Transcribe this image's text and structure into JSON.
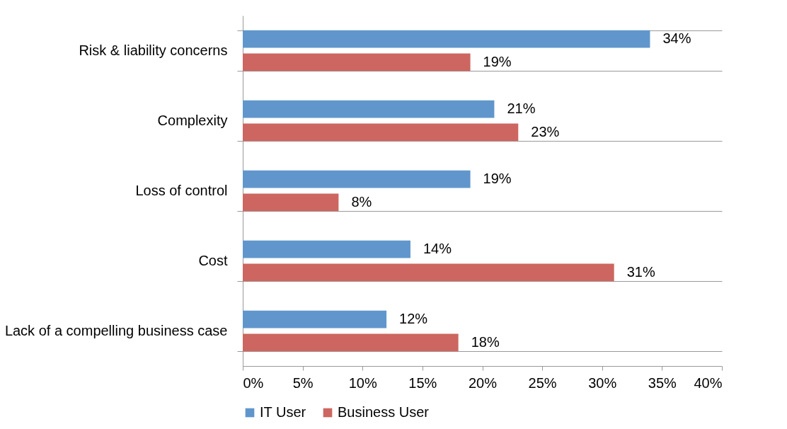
{
  "chart_data": {
    "type": "bar",
    "orientation": "horizontal",
    "categories": [
      "Risk & liability concerns",
      "Complexity",
      "Loss of control",
      "Cost",
      "Lack of a compelling business case"
    ],
    "series": [
      {
        "name": "IT User",
        "color": "#6096cc",
        "values": [
          34,
          21,
          19,
          14,
          12
        ],
        "value_labels": [
          "34%",
          "21%",
          "19%",
          "14%",
          "12%"
        ]
      },
      {
        "name": "Business User",
        "color": "#cd6660",
        "values": [
          19,
          23,
          8,
          31,
          18
        ],
        "value_labels": [
          "19%",
          "23%",
          "8%",
          "31%",
          "18%"
        ]
      }
    ],
    "xlim": [
      0,
      40
    ],
    "xticks": [
      {
        "value": 0,
        "label": "0%"
      },
      {
        "value": 5,
        "label": "5%"
      },
      {
        "value": 10,
        "label": "10%"
      },
      {
        "value": 15,
        "label": "15%"
      },
      {
        "value": 20,
        "label": "20%"
      },
      {
        "value": 25,
        "label": "25%"
      },
      {
        "value": 30,
        "label": "30%"
      },
      {
        "value": 35,
        "label": "35%"
      },
      {
        "value": 40,
        "label": "40%"
      }
    ],
    "grid": "y",
    "legend": "bottom"
  }
}
